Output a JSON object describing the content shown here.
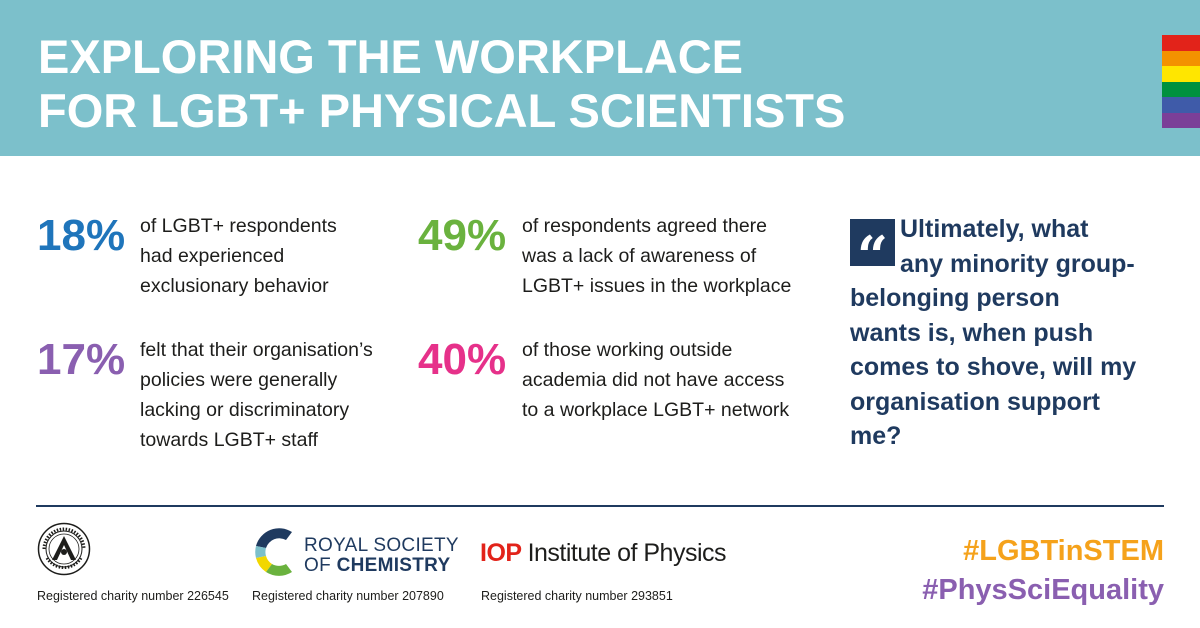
{
  "header": {
    "title_line1": "EXPLORING THE WORKPLACE",
    "title_line2": "FOR LGBT+ PHYSICAL SCIENTISTS",
    "background_color": "#7cc0cb",
    "rainbow_colors": [
      "#e2231a",
      "#f39200",
      "#ffe600",
      "#00913f",
      "#3f5ba9",
      "#7b3f98"
    ]
  },
  "stats": [
    {
      "percent": "18%",
      "color": "#1f75bb",
      "lines": [
        "of LGBT+ respondents",
        "had experienced",
        "exclusionary behavior"
      ]
    },
    {
      "percent": "17%",
      "color": "#8a5fb0",
      "lines": [
        "felt that their organisation’s",
        "policies were generally",
        "lacking or discriminatory",
        "towards LGBT+ staff"
      ]
    },
    {
      "percent": "49%",
      "color": "#6ab23e",
      "lines": [
        "of respondents agreed there",
        "was a lack of awareness of",
        "LGBT+ issues in the workplace"
      ]
    },
    {
      "percent": "40%",
      "color": "#e6318a",
      "lines": [
        "of those working outside",
        "academia did not have access",
        "to a workplace LGBT+ network"
      ]
    }
  ],
  "quote": {
    "mark": "“",
    "line1": "Ultimately, what",
    "line2": "any minority group-",
    "line3": "belonging person",
    "line4": "wants is, when push",
    "line5": "comes to shove, will my",
    "line6": "organisation support",
    "line7": "me?",
    "color": "#1f3a5f"
  },
  "footer": {
    "ras_charity": "Registered charity number 226545",
    "rsc_name_line1": "ROYAL SOCIETY",
    "rsc_name_of": "OF ",
    "rsc_name_line2": "CHEMISTRY",
    "rsc_charity": "Registered charity number 207890",
    "iop_abbrev": "IOP",
    "iop_name": "Institute of Physics",
    "iop_charity": "Registered charity number 293851",
    "hashtag1": "#LGBTinSTEM",
    "hashtag2": "#PhysSciEquality"
  }
}
